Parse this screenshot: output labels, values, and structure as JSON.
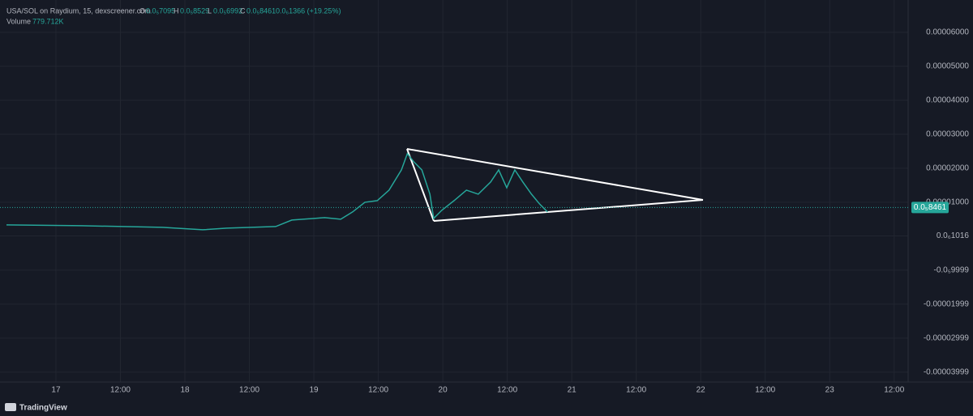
{
  "chart_data": {
    "type": "line",
    "title": "USA/SOL on Raydium, 15, dexscreener.com",
    "header": {
      "open_key": "O",
      "open": "0.0₅7095",
      "high_key": "H",
      "high": "0.0₅8529",
      "low_key": "L",
      "low": "0.0₅6992",
      "close_key": "C",
      "close": "0.0₅8461",
      "change": "0.0₆1366 (+19.25%)",
      "volume_key": "Volume",
      "volume": "779.712K"
    },
    "footer": "TradingView",
    "color": "#26a69a",
    "x": [
      -9.2,
      4.7,
      19.8,
      27.3,
      31.8,
      40.9,
      43.9,
      50.0,
      53.0,
      55.2,
      57.5,
      59.8,
      62.0,
      64.3,
      65.4,
      66.6,
      68.1,
      69.6,
      70.3,
      71.8,
      74.1,
      76.4,
      78.6,
      80.9,
      82.4,
      83.9,
      85.4,
      86.9,
      88.5,
      90.0,
      91.5
    ],
    "values": [
      3.33e-06,
      3.1e-06,
      2.62e-06,
      1.9e-06,
      2.38e-06,
      2.86e-06,
      4.76e-06,
      5.48e-06,
      5e-06,
      7.14e-06,
      1e-05,
      1.048e-05,
      1.357e-05,
      1.952e-05,
      2.429e-05,
      2.19e-05,
      1.952e-05,
      1.238e-05,
      5.24e-06,
      7.62e-06,
      1.048e-05,
      1.357e-05,
      1.238e-05,
      1.595e-05,
      1.952e-05,
      1.429e-05,
      1.952e-05,
      1.595e-05,
      1.238e-05,
      9.52e-06,
      7.14e-06
    ],
    "last_price": 8.461e-06,
    "xlim": [
      -9.2,
      158.6
    ],
    "xticks": [
      {
        "value": 0,
        "label": "17"
      },
      {
        "value": 12,
        "label": "12:00"
      },
      {
        "value": 24,
        "label": "18"
      },
      {
        "value": 36,
        "label": "12:00"
      },
      {
        "value": 48,
        "label": "19"
      },
      {
        "value": 60,
        "label": "12:00"
      },
      {
        "value": 72,
        "label": "20"
      },
      {
        "value": 84,
        "label": "12:00"
      },
      {
        "value": 96,
        "label": "21"
      },
      {
        "value": 108,
        "label": "12:00"
      },
      {
        "value": 120,
        "label": "22"
      },
      {
        "value": 132,
        "label": "12:00"
      },
      {
        "value": 144,
        "label": "23"
      },
      {
        "value": 156,
        "label": "12:00"
      }
    ],
    "ylim": [
      -4.24e-05,
      6.95e-05
    ],
    "yticks": [
      {
        "value": 6e-05,
        "label": "0.00006000"
      },
      {
        "value": 5e-05,
        "label": "0.00005000"
      },
      {
        "value": 4e-05,
        "label": "0.00004000"
      },
      {
        "value": 3e-05,
        "label": "0.00003000"
      },
      {
        "value": 2e-05,
        "label": "0.00002000"
      },
      {
        "value": 1e-05,
        "label": "0.00001000"
      },
      {
        "value": 1.016e-07,
        "label": "0.0₆1016"
      },
      {
        "value": -9.999e-06,
        "label": "-0.0₅9999"
      },
      {
        "value": -1.999e-05,
        "label": "-0.00001999"
      },
      {
        "value": -2.999e-05,
        "label": "-0.00002999"
      },
      {
        "value": -3.999e-05,
        "label": "-0.00003999"
      }
    ],
    "grid": true
  }
}
